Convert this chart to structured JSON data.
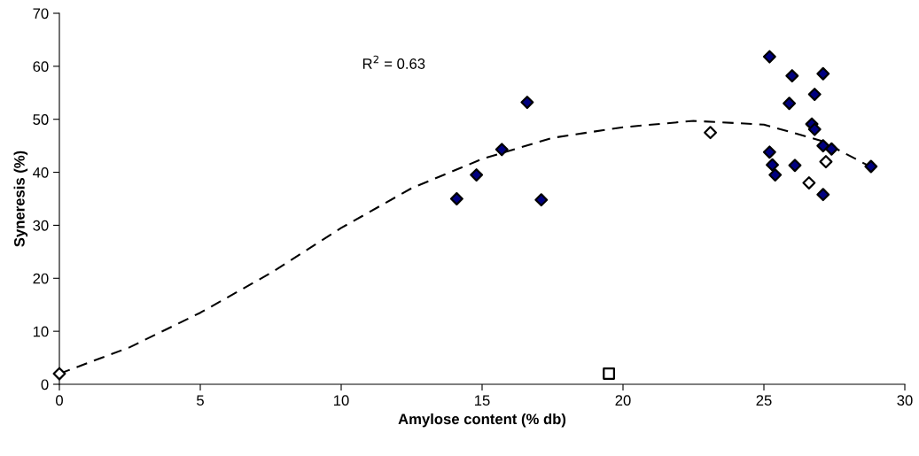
{
  "chart_data": {
    "type": "scatter",
    "xlabel": "Amylose content (% db)",
    "ylabel": "Syneresis (%)",
    "xlim": [
      0,
      30
    ],
    "ylim": [
      0,
      70
    ],
    "xticks": [
      0,
      5,
      10,
      15,
      20,
      25,
      30
    ],
    "yticks": [
      0,
      10,
      20,
      30,
      40,
      50,
      60,
      70
    ],
    "grid": false,
    "legend": false,
    "annotations": [
      "R$^{2}$ = 0.63"
    ],
    "series": [
      {
        "marker": "diamond",
        "color": "#000080",
        "x": [
          14.1,
          14.8,
          15.7,
          16.6,
          17.1,
          25.2,
          26.0,
          27.1,
          25.9,
          26.8,
          26.7,
          26.8,
          27.1,
          27.4,
          25.2,
          25.3,
          25.4,
          26.1,
          27.1,
          28.8
        ],
        "values": [
          35,
          39.5,
          44.3,
          53.2,
          34.8,
          61.8,
          58.2,
          58.6,
          53.0,
          54.7,
          49.1,
          48.1,
          45.0,
          44.4,
          43.8,
          41.4,
          39.5,
          41.3,
          35.8,
          41.1
        ]
      },
      {
        "marker": "diamond",
        "color": "#ffffff",
        "x": [
          0,
          23.1,
          26.6,
          27.2
        ],
        "values": [
          2,
          47.5,
          38,
          42
        ]
      },
      {
        "marker": "square",
        "color": "#ffffff",
        "x": [
          19.5
        ],
        "values": [
          2
        ]
      },
      {
        "type": "line",
        "marker": "none",
        "line_style": "dashed",
        "color": "#000000",
        "x": [
          0,
          2.5,
          5,
          7.5,
          10,
          12.5,
          15,
          17.5,
          20,
          22.5,
          25,
          27,
          28.8
        ],
        "values": [
          2,
          7,
          13.5,
          21,
          29.5,
          37,
          42.5,
          46.5,
          48.5,
          49.7,
          49,
          46,
          41
        ]
      }
    ]
  }
}
